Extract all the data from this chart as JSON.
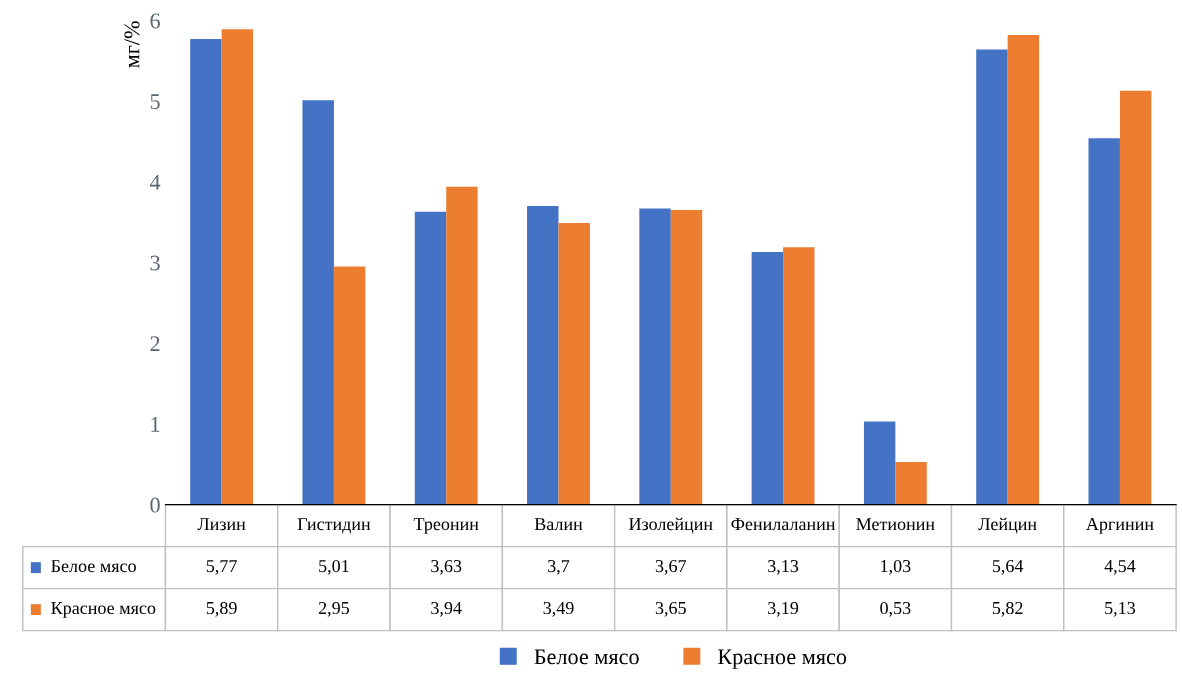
{
  "chart_data": {
    "type": "bar",
    "ylabel": "мг/%",
    "categories": [
      "Лизин",
      "Гистидин",
      "Треонин",
      "Валин",
      "Изолейцин",
      "Фенилаланин",
      "Метионин",
      "Лейцин",
      "Аргинин"
    ],
    "series": [
      {
        "name": "Белое мясо",
        "color": "#4472c4",
        "values": [
          5.77,
          5.01,
          3.63,
          3.7,
          3.67,
          3.13,
          1.03,
          5.64,
          4.54
        ],
        "value_labels": [
          "5,77",
          "5,01",
          "3,63",
          "3,7",
          "3,67",
          "3,13",
          "1,03",
          "5,64",
          "4,54"
        ]
      },
      {
        "name": "Красное мясо",
        "color": "#ed7d31",
        "values": [
          5.89,
          2.95,
          3.94,
          3.49,
          3.65,
          3.19,
          0.53,
          5.82,
          5.13
        ],
        "value_labels": [
          "5,89",
          "2,95",
          "3,94",
          "3,49",
          "3,65",
          "3,19",
          "0,53",
          "5,82",
          "5,13"
        ]
      }
    ],
    "ylim": [
      0,
      6
    ],
    "yticks": [
      0,
      1,
      2,
      3,
      4,
      5,
      6
    ],
    "grid": false,
    "legend": "bottom"
  }
}
